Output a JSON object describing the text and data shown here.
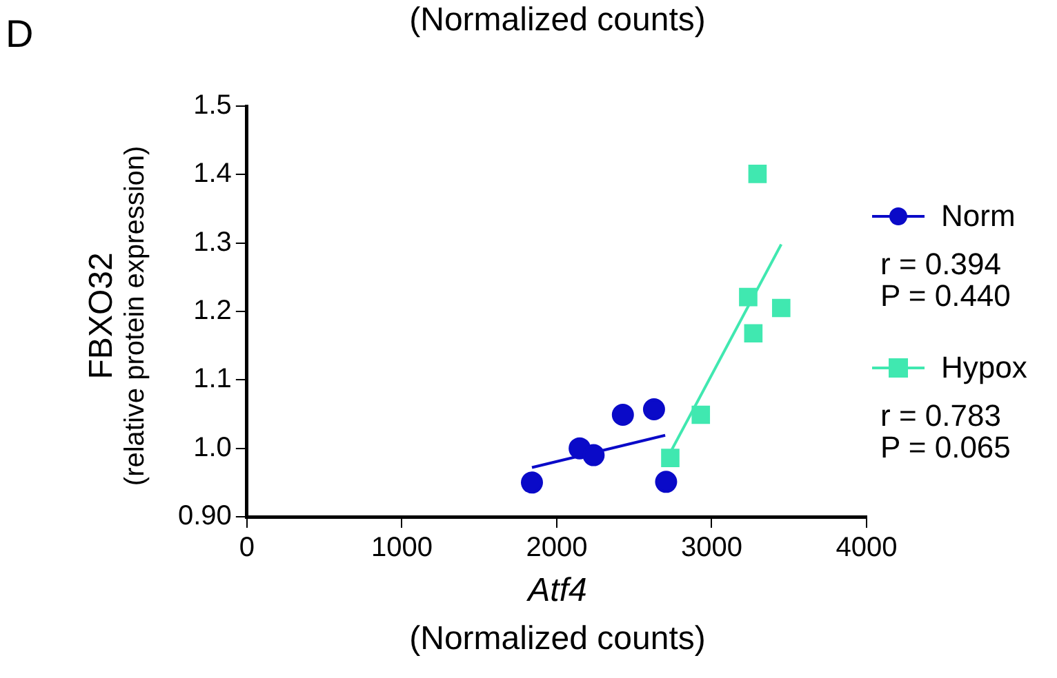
{
  "chart_data": {
    "type": "scatter",
    "xlabel": "Atf4\n(Normalized counts)",
    "ylabel": "FBXO32\n(relative protein expression)",
    "xlim": [
      0,
      4000
    ],
    "xticks": [
      0,
      1000,
      2000,
      3000,
      4000
    ],
    "ylim": [
      0.9,
      1.5
    ],
    "yticks": [
      {
        "value": 0.9,
        "label": "0.90"
      },
      {
        "value": 1,
        "label": "1.0"
      },
      1.1,
      1.2,
      1.3,
      1.4,
      1.5
    ],
    "grid": false,
    "legend": "right",
    "series": [
      {
        "name": "Norm",
        "type": "scatter",
        "marker": "circle",
        "color": "#0a0ac8",
        "x": [
          1840,
          2148,
          2238,
          2427,
          2628,
          2706
        ],
        "values": [
          0.95,
          1.0,
          0.99,
          1.049,
          1.057,
          0.951
        ]
      },
      {
        "type": "line",
        "marker": "none",
        "color": "#0a0ac8",
        "x": [
          1840,
          2700
        ],
        "values": [
          0.972,
          1.019
        ]
      },
      {
        "name": "Hypox",
        "type": "scatter",
        "marker": "square",
        "color": "#40e8b0",
        "x": [
          2733,
          2930,
          3236,
          3269,
          3296,
          3449
        ],
        "values": [
          0.986,
          1.049,
          1.221,
          1.168,
          1.401,
          1.205
        ]
      },
      {
        "type": "line",
        "marker": "none",
        "color": "#40e8b0",
        "x": [
          2738,
          3449
        ],
        "values": [
          0.996,
          1.298
        ]
      }
    ],
    "annotations": [
      "D",
      "(Normalized counts)",
      "r = 0.394\nP = 0.440",
      "r = 0.783\nP = 0.065"
    ]
  }
}
